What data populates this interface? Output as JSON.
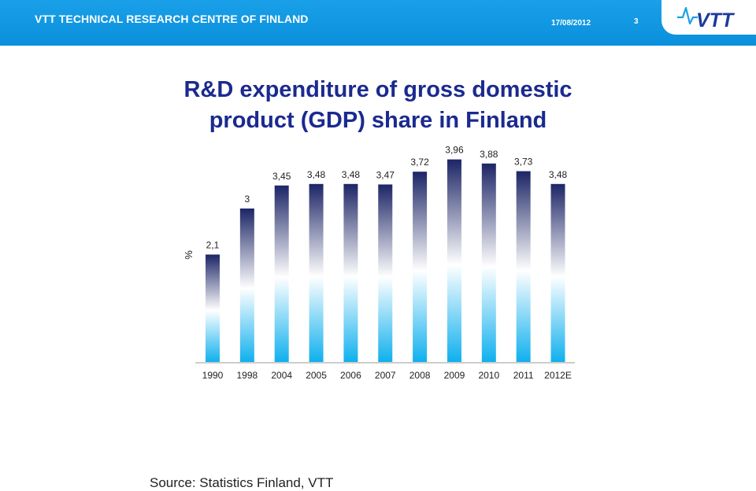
{
  "header": {
    "org": "VTT TECHNICAL RESEARCH CENTRE OF FINLAND",
    "date": "17/08/2012",
    "page": "3",
    "logo_text": "VTT",
    "colors": {
      "bar": "#0a8fdc",
      "title": "#1b2a8f",
      "logo": "#1b3a9a"
    }
  },
  "title_line1": "R&D expenditure of gross domestic",
  "title_line2": "product (GDP) share in Finland",
  "source": "Source: Statistics Finland, VTT",
  "chart_data": {
    "type": "bar",
    "ylabel": "%",
    "categories": [
      "1990",
      "1998",
      "2004",
      "2005",
      "2006",
      "2007",
      "2008",
      "2009",
      "2010",
      "2011",
      "2012E"
    ],
    "values": [
      2.1,
      3,
      3.45,
      3.48,
      3.48,
      3.47,
      3.72,
      3.96,
      3.88,
      3.73,
      3.48
    ],
    "value_labels": [
      "2,1",
      "3",
      "3,45",
      "3,48",
      "3,48",
      "3,47",
      "3,72",
      "3,96",
      "3,88",
      "3,73",
      "3,48"
    ],
    "ylim": [
      0,
      4
    ],
    "grid": false,
    "legend": "none",
    "colors": {
      "bar_top": "#1c2566",
      "bar_mid": "#ffffff",
      "bar_bottom": "#0fb0ee"
    }
  }
}
